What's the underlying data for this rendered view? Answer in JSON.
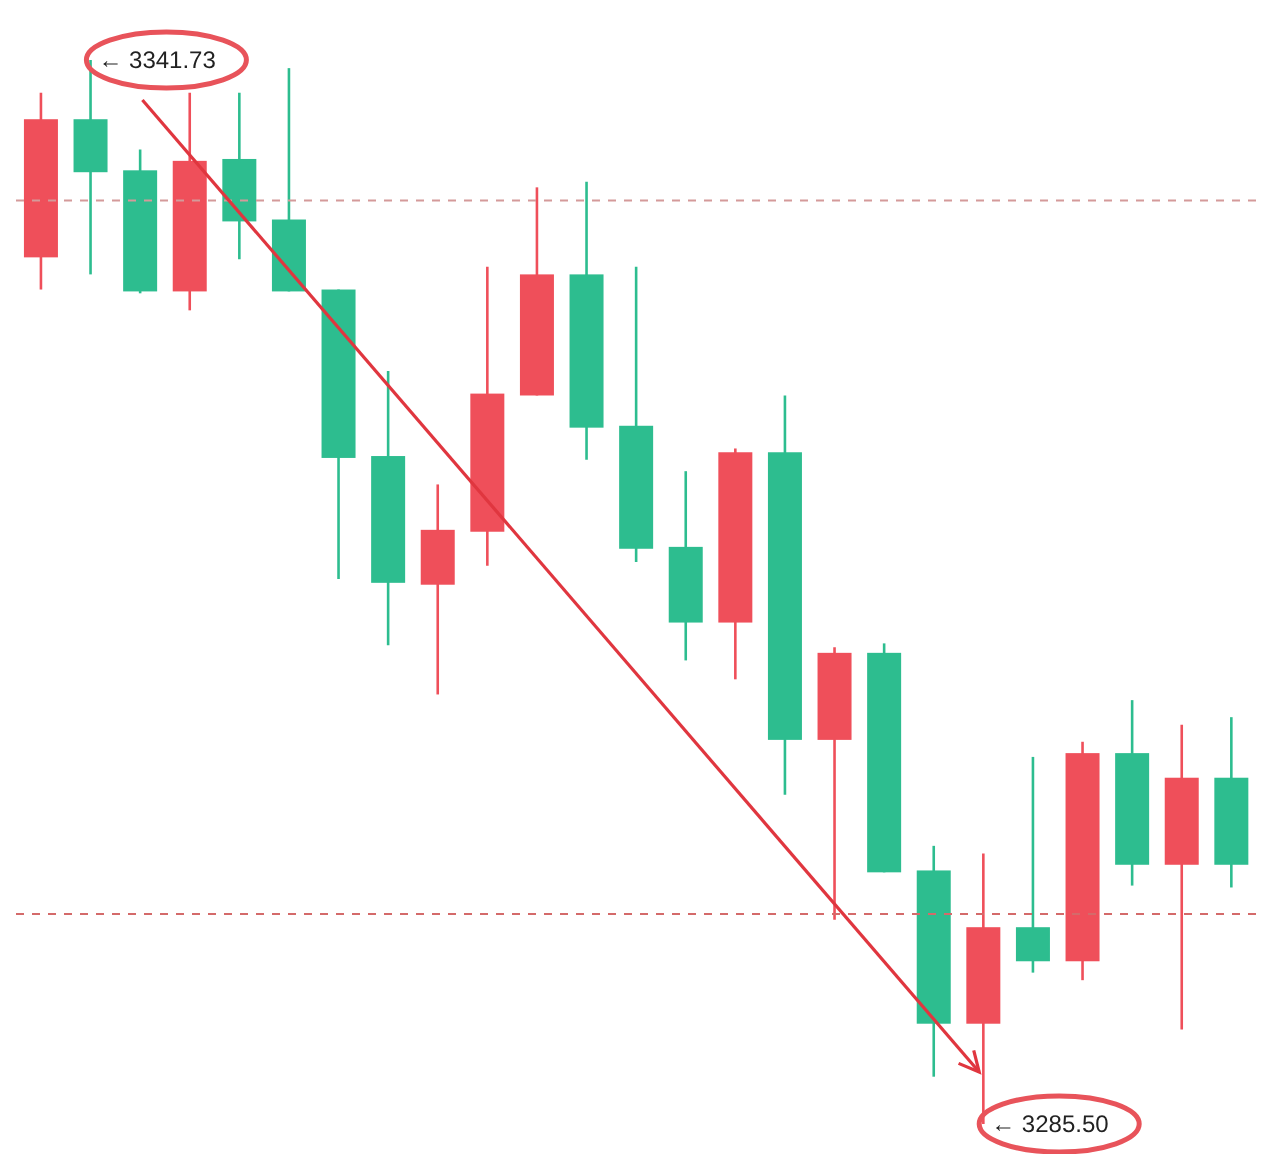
{
  "chart_data": {
    "type": "candlestick",
    "categories": [
      null,
      null,
      null,
      null,
      null,
      null,
      null,
      null,
      null,
      null,
      null,
      null,
      null,
      null,
      null,
      null,
      null,
      null,
      null,
      null,
      null,
      null,
      null,
      null,
      null
    ],
    "ohlc": [
      [
        3331.3,
        3340.0,
        3329.6,
        3338.6
      ],
      [
        3338.6,
        3341.73,
        3330.4,
        3335.8
      ],
      [
        3335.9,
        3337.0,
        3329.4,
        3329.5
      ],
      [
        3329.5,
        3340.0,
        3328.5,
        3336.4
      ],
      [
        3336.5,
        3340.0,
        3331.2,
        3333.2
      ],
      [
        3333.3,
        3341.3,
        3329.5,
        3329.5
      ],
      [
        3329.6,
        3329.6,
        3314.3,
        3320.7
      ],
      [
        3320.8,
        3325.3,
        3310.8,
        3314.1
      ],
      [
        3314.0,
        3319.3,
        3308.2,
        3316.9
      ],
      [
        3316.8,
        3330.8,
        3315.0,
        3324.1
      ],
      [
        3324.0,
        3335.0,
        3324.0,
        3330.4
      ],
      [
        3330.4,
        3335.3,
        3320.6,
        3322.3
      ],
      [
        3322.4,
        3330.8,
        3315.2,
        3315.9
      ],
      [
        3316.0,
        3320.0,
        3310.0,
        3312.0
      ],
      [
        3312.0,
        3321.2,
        3309.0,
        3321.0
      ],
      [
        3321.0,
        3324.0,
        3302.9,
        3305.8
      ],
      [
        3305.8,
        3310.7,
        3296.3,
        3310.4
      ],
      [
        3310.4,
        3310.9,
        3298.8,
        3298.8
      ],
      [
        3298.9,
        3300.2,
        3288.0,
        3290.8
      ],
      [
        3290.8,
        3299.8,
        3285.5,
        3295.9
      ],
      [
        3295.9,
        3304.9,
        3293.5,
        3294.1
      ],
      [
        3294.1,
        3305.7,
        3293.1,
        3305.1
      ],
      [
        3305.1,
        3307.9,
        3298.1,
        3299.2
      ],
      [
        3299.2,
        3306.6,
        3290.5,
        3303.8
      ],
      [
        3303.8,
        3307.0,
        3298.0,
        3299.2
      ]
    ],
    "colors": [
      "#ef4f5a",
      "#2dbd8f",
      "#2dbd8f",
      "#ef4f5a",
      "#2dbd8f",
      "#2dbd8f",
      "#2dbd8f",
      "#2dbd8f",
      "#ef4f5a",
      "#ef4f5a",
      "#ef4f5a",
      "#2dbd8f",
      "#2dbd8f",
      "#2dbd8f",
      "#ef4f5a",
      "#2dbd8f",
      "#ef4f5a",
      "#2dbd8f",
      "#2dbd8f",
      "#ef4f5a",
      "#2dbd8f",
      "#ef4f5a",
      "#2dbd8f",
      "#ef4f5a",
      "#2dbd8f"
    ],
    "ref_lines": [
      {
        "axis": "y",
        "value": 3334.3,
        "color": "#d49a9a",
        "line_style": "dashed"
      },
      {
        "axis": "y",
        "value": 3296.6,
        "color": "#d46a6a",
        "line_style": "dashed"
      }
    ],
    "annotations": [
      "← 3341.73",
      "← 3285.50"
    ]
  }
}
